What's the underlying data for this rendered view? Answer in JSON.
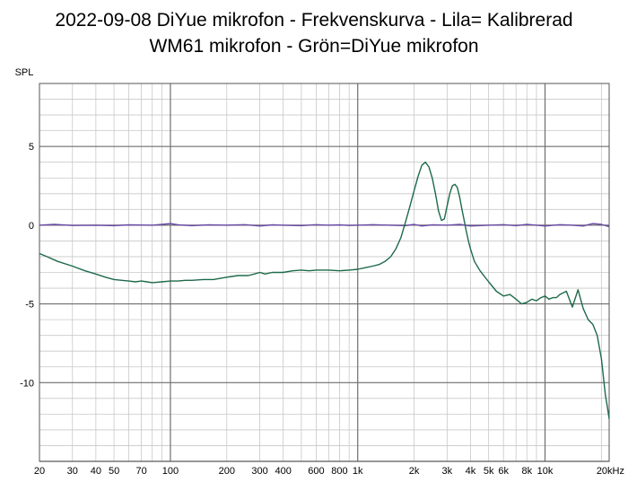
{
  "title_line1": "2022-09-08 DiYue mikrofon - Frekvenskurva - Lila= Kalibrerad",
  "title_line2": "WM61 mikrofon - Grön=DiYue mikrofon",
  "colors": {
    "grid_major": "#6e6e6e",
    "grid_minor": "#c8c8c8",
    "background": "#ffffff"
  },
  "chart_data": {
    "type": "line",
    "title": "2022-09-08 DiYue mikrofon - Frekvenskurva - Lila= Kalibrerad WM61 mikrofon - Grön=DiYue mikrofon",
    "ylabel": "SPL",
    "xlabel": "",
    "xscale": "log",
    "xlim": [
      20,
      22000
    ],
    "ylim": [
      -15,
      9
    ],
    "grid": true,
    "legend": "none",
    "y_ticks": [
      {
        "value": 5,
        "label": "5"
      },
      {
        "value": 0,
        "label": "0"
      },
      {
        "value": -5,
        "label": "-5"
      },
      {
        "value": -10,
        "label": "-10"
      }
    ],
    "x_ticks": [
      {
        "value": 20,
        "label": "20"
      },
      {
        "value": 30,
        "label": "30"
      },
      {
        "value": 40,
        "label": "40"
      },
      {
        "value": 50,
        "label": "50"
      },
      {
        "value": 70,
        "label": "70"
      },
      {
        "value": 100,
        "label": "100"
      },
      {
        "value": 200,
        "label": "200"
      },
      {
        "value": 300,
        "label": "300"
      },
      {
        "value": 400,
        "label": "400"
      },
      {
        "value": 600,
        "label": "600"
      },
      {
        "value": 800,
        "label": "800"
      },
      {
        "value": 1000,
        "label": "1k"
      },
      {
        "value": 2000,
        "label": "2k"
      },
      {
        "value": 3000,
        "label": "3k"
      },
      {
        "value": 4000,
        "label": "4k"
      },
      {
        "value": 5000,
        "label": "5k"
      },
      {
        "value": 6000,
        "label": "6k"
      },
      {
        "value": 8000,
        "label": "8k"
      },
      {
        "value": 10000,
        "label": "10k"
      },
      {
        "value": 20000,
        "label": "20kHz"
      }
    ],
    "series": [
      {
        "color": "#6a4aa6",
        "x": [
          20,
          24,
          30,
          40,
          50,
          60,
          80,
          90,
          100,
          110,
          130,
          160,
          200,
          250,
          300,
          350,
          400,
          500,
          600,
          700,
          800,
          900,
          1000,
          1200,
          1500,
          1800,
          2000,
          2200,
          2500,
          3000,
          3500,
          4000,
          5000,
          6000,
          7000,
          8000,
          9000,
          10000,
          12000,
          14000,
          16000,
          18000,
          20000,
          22000
        ],
        "y": [
          0.0,
          0.05,
          -0.02,
          0.0,
          -0.03,
          0.02,
          0.0,
          0.05,
          0.1,
          0.02,
          -0.03,
          0.02,
          0.0,
          0.03,
          -0.05,
          0.02,
          0.0,
          -0.03,
          0.03,
          0.0,
          0.02,
          -0.02,
          0.0,
          0.03,
          0.0,
          -0.03,
          0.05,
          -0.05,
          0.02,
          0.0,
          0.05,
          -0.05,
          0.0,
          0.03,
          -0.03,
          0.05,
          0.0,
          -0.05,
          0.03,
          0.0,
          -0.05,
          0.1,
          0.05,
          -0.1
        ]
      },
      {
        "color": "#1e6a4a",
        "x": [
          20,
          22,
          25,
          30,
          35,
          40,
          45,
          50,
          55,
          60,
          65,
          70,
          75,
          80,
          90,
          100,
          110,
          120,
          130,
          150,
          170,
          200,
          230,
          260,
          280,
          300,
          320,
          350,
          400,
          450,
          500,
          550,
          600,
          700,
          800,
          900,
          1000,
          1100,
          1200,
          1300,
          1400,
          1500,
          1600,
          1700,
          1800,
          1900,
          2000,
          2100,
          2200,
          2300,
          2400,
          2500,
          2600,
          2700,
          2800,
          2900,
          3000,
          3100,
          3200,
          3300,
          3400,
          3500,
          3600,
          3700,
          3800,
          3900,
          4000,
          4200,
          4500,
          5000,
          5500,
          6000,
          6500,
          7000,
          7500,
          8000,
          8500,
          9000,
          9500,
          10000,
          10500,
          11000,
          11500,
          12000,
          13000,
          14000,
          15000,
          16000,
          17000,
          18000,
          19000,
          20000,
          21000,
          21500,
          22000
        ],
        "y": [
          -1.8,
          -2.0,
          -2.3,
          -2.6,
          -2.9,
          -3.1,
          -3.3,
          -3.45,
          -3.5,
          -3.55,
          -3.6,
          -3.55,
          -3.6,
          -3.65,
          -3.6,
          -3.55,
          -3.55,
          -3.5,
          -3.5,
          -3.45,
          -3.45,
          -3.3,
          -3.2,
          -3.2,
          -3.1,
          -3.0,
          -3.1,
          -3.0,
          -3.0,
          -2.9,
          -2.85,
          -2.9,
          -2.85,
          -2.85,
          -2.9,
          -2.85,
          -2.8,
          -2.7,
          -2.6,
          -2.5,
          -2.3,
          -2.0,
          -1.5,
          -0.8,
          0.2,
          1.2,
          2.2,
          3.1,
          3.8,
          4.0,
          3.7,
          3.0,
          2.0,
          0.9,
          0.3,
          0.4,
          1.2,
          2.0,
          2.5,
          2.6,
          2.4,
          1.8,
          1.0,
          0.3,
          -0.4,
          -1.0,
          -1.5,
          -2.3,
          -2.9,
          -3.6,
          -4.2,
          -4.5,
          -4.4,
          -4.7,
          -5.0,
          -4.9,
          -4.7,
          -4.8,
          -4.6,
          -4.5,
          -4.7,
          -4.6,
          -4.6,
          -4.4,
          -4.2,
          -5.2,
          -4.1,
          -5.3,
          -6.0,
          -6.3,
          -7.0,
          -8.5,
          -10.8,
          -11.5,
          -12.3
        ]
      }
    ]
  }
}
